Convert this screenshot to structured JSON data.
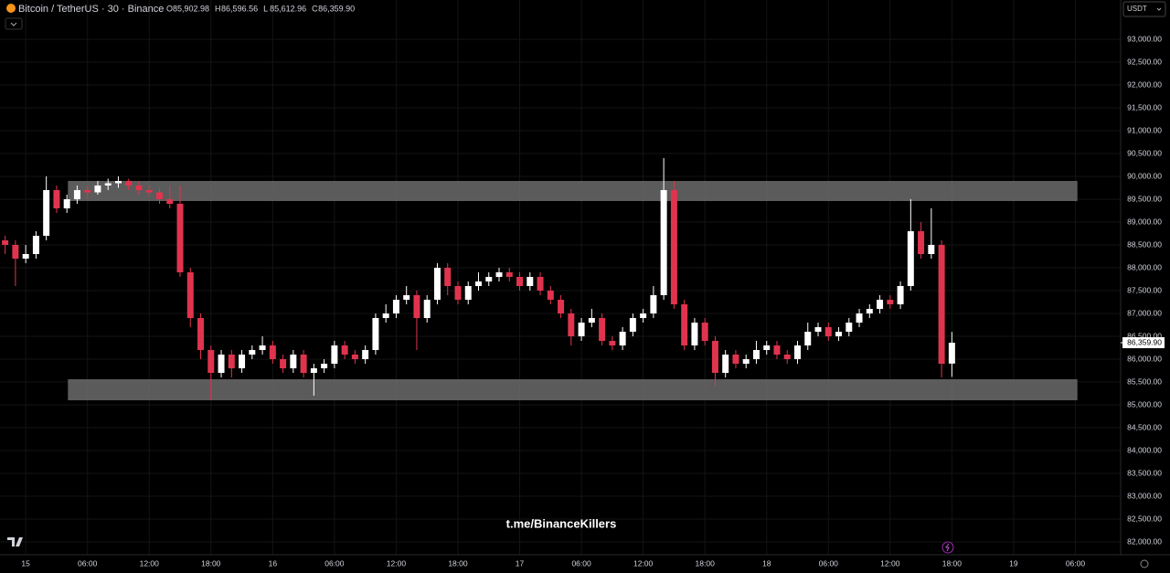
{
  "chart_data": {
    "type": "candlestick",
    "title": "Bitcoin / TetherUS · 30 · Binance",
    "ohlc": [
      {
        "label": "O",
        "value": "85,902.98"
      },
      {
        "label": "H",
        "value": "86,596.56"
      },
      {
        "label": "L",
        "value": "85,612.96"
      },
      {
        "label": "C",
        "value": "86,359.90"
      }
    ],
    "currency": "USDT",
    "watermark": "t.me/BinanceKillers",
    "colors": {
      "up": "#ffffff",
      "down": "#e0344e",
      "zone": "#6b6b6b",
      "background": "#000000"
    },
    "x": [
      -2,
      -1,
      0,
      1,
      2,
      3,
      4,
      5,
      6,
      7,
      8,
      9,
      10,
      11,
      12,
      13,
      14,
      15,
      16,
      17,
      18,
      19,
      20,
      21,
      22,
      23,
      24,
      25,
      26,
      27,
      28,
      29,
      30,
      31,
      32,
      33,
      34,
      35,
      36,
      37,
      38,
      39,
      40,
      41,
      42,
      43,
      44,
      45,
      46,
      47,
      48,
      49,
      50,
      51,
      52,
      53,
      54,
      55,
      56,
      57,
      58,
      59,
      60,
      61,
      62,
      63,
      64,
      65,
      66,
      67,
      68,
      69,
      70,
      71,
      72,
      73,
      74,
      75,
      76,
      77,
      78,
      79,
      80,
      81,
      82,
      83,
      84,
      85,
      86,
      87,
      88,
      89,
      90
    ],
    "candles": [
      [
        88600,
        88700,
        88300,
        88500
      ],
      [
        88500,
        88600,
        87600,
        88200
      ],
      [
        88200,
        88500,
        88100,
        88300
      ],
      [
        88300,
        88800,
        88200,
        88700
      ],
      [
        88700,
        90000,
        88600,
        89700
      ],
      [
        89700,
        89800,
        89200,
        89300
      ],
      [
        89300,
        89600,
        89200,
        89500
      ],
      [
        89500,
        89800,
        89400,
        89700
      ],
      [
        89700,
        89800,
        89500,
        89650
      ],
      [
        89650,
        89900,
        89600,
        89800
      ],
      [
        89800,
        89950,
        89700,
        89850
      ],
      [
        89850,
        90000,
        89750,
        89900
      ],
      [
        89900,
        89950,
        89700,
        89800
      ],
      [
        89800,
        89900,
        89600,
        89700
      ],
      [
        89700,
        89800,
        89550,
        89650
      ],
      [
        89650,
        89750,
        89400,
        89500
      ],
      [
        89500,
        89800,
        89300,
        89400
      ],
      [
        89400,
        89800,
        87800,
        87900
      ],
      [
        87900,
        88000,
        86700,
        86900
      ],
      [
        86900,
        87000,
        86000,
        86200
      ],
      [
        86200,
        86300,
        85100,
        85700
      ],
      [
        85700,
        86200,
        85600,
        86100
      ],
      [
        86100,
        86200,
        85600,
        85800
      ],
      [
        85800,
        86200,
        85700,
        86100
      ],
      [
        86100,
        86300,
        86000,
        86200
      ],
      [
        86200,
        86500,
        86100,
        86300
      ],
      [
        86300,
        86400,
        85900,
        86000
      ],
      [
        86000,
        86100,
        85700,
        85800
      ],
      [
        85800,
        86200,
        85700,
        86100
      ],
      [
        86100,
        86200,
        85600,
        85700
      ],
      [
        85700,
        85900,
        85200,
        85800
      ],
      [
        85800,
        86000,
        85700,
        85900
      ],
      [
        85900,
        86400,
        85800,
        86300
      ],
      [
        86300,
        86400,
        86000,
        86100
      ],
      [
        86100,
        86200,
        85900,
        86000
      ],
      [
        86000,
        86300,
        85900,
        86200
      ],
      [
        86200,
        87000,
        86100,
        86900
      ],
      [
        86900,
        87200,
        86800,
        87000
      ],
      [
        87000,
        87400,
        86900,
        87300
      ],
      [
        87300,
        87600,
        87200,
        87400
      ],
      [
        87400,
        87500,
        86200,
        86900
      ],
      [
        86900,
        87400,
        86800,
        87300
      ],
      [
        87300,
        88100,
        87200,
        88000
      ],
      [
        88000,
        88100,
        87400,
        87600
      ],
      [
        87600,
        87700,
        87200,
        87300
      ],
      [
        87300,
        87700,
        87200,
        87600
      ],
      [
        87600,
        87900,
        87500,
        87700
      ],
      [
        87700,
        87900,
        87600,
        87800
      ],
      [
        87800,
        88000,
        87700,
        87900
      ],
      [
        87900,
        88000,
        87700,
        87800
      ],
      [
        87800,
        87900,
        87500,
        87600
      ],
      [
        87600,
        87900,
        87500,
        87800
      ],
      [
        87800,
        87900,
        87400,
        87500
      ],
      [
        87500,
        87600,
        87200,
        87300
      ],
      [
        87300,
        87400,
        86900,
        87000
      ],
      [
        87000,
        87100,
        86300,
        86500
      ],
      [
        86500,
        86900,
        86400,
        86800
      ],
      [
        86800,
        87100,
        86700,
        86900
      ],
      [
        86900,
        87000,
        86300,
        86400
      ],
      [
        86400,
        86500,
        86200,
        86300
      ],
      [
        86300,
        86700,
        86200,
        86600
      ],
      [
        86600,
        87000,
        86500,
        86900
      ],
      [
        86900,
        87100,
        86800,
        87000
      ],
      [
        87000,
        87600,
        86900,
        87400
      ],
      [
        87400,
        90400,
        87300,
        89700
      ],
      [
        89700,
        89900,
        87100,
        87200
      ],
      [
        87200,
        87300,
        86200,
        86300
      ],
      [
        86300,
        86900,
        86200,
        86800
      ],
      [
        86800,
        86900,
        86300,
        86400
      ],
      [
        86400,
        86500,
        85400,
        85700
      ],
      [
        85700,
        86200,
        85600,
        86100
      ],
      [
        86100,
        86200,
        85800,
        85900
      ],
      [
        85900,
        86100,
        85800,
        86000
      ],
      [
        86000,
        86400,
        85900,
        86200
      ],
      [
        86200,
        86400,
        86100,
        86300
      ],
      [
        86300,
        86400,
        86000,
        86100
      ],
      [
        86100,
        86200,
        85900,
        86000
      ],
      [
        86000,
        86400,
        85900,
        86300
      ],
      [
        86300,
        86800,
        86200,
        86600
      ],
      [
        86600,
        86800,
        86500,
        86700
      ],
      [
        86700,
        86800,
        86400,
        86500
      ],
      [
        86500,
        86700,
        86400,
        86600
      ],
      [
        86600,
        86900,
        86500,
        86800
      ],
      [
        86800,
        87100,
        86700,
        87000
      ],
      [
        87000,
        87200,
        86900,
        87100
      ],
      [
        87100,
        87400,
        87000,
        87300
      ],
      [
        87300,
        87400,
        87100,
        87200
      ],
      [
        87200,
        87700,
        87100,
        87600
      ],
      [
        87600,
        89500,
        87500,
        88800
      ],
      [
        88800,
        89000,
        88200,
        88300
      ],
      [
        88300,
        89300,
        88200,
        88500
      ],
      [
        88500,
        88600,
        85600,
        85900
      ],
      [
        85902.98,
        86596.56,
        85612.96,
        86359.9
      ]
    ],
    "zones": [
      {
        "x_from": 4.1,
        "x_to": 102.2,
        "from": 89460,
        "to": 89900
      },
      {
        "x_from": 4.1,
        "x_to": 102.2,
        "from": 85100,
        "to": 85560
      }
    ],
    "price_label": {
      "value": 86359.9,
      "label": "86,359.90"
    },
    "xlim": [
      -2.5,
      106.4
    ],
    "ylim": [
      81720,
      93860
    ],
    "xticks": [
      {
        "value": 0,
        "label": "15"
      },
      {
        "value": 6,
        "label": "06:00"
      },
      {
        "value": 12,
        "label": "12:00"
      },
      {
        "value": 18,
        "label": "18:00"
      },
      {
        "value": 24,
        "label": "16"
      },
      {
        "value": 30,
        "label": "06:00"
      },
      {
        "value": 36,
        "label": "12:00"
      },
      {
        "value": 42,
        "label": "18:00"
      },
      {
        "value": 48,
        "label": "17"
      },
      {
        "value": 54,
        "label": "06:00"
      },
      {
        "value": 60,
        "label": "12:00"
      },
      {
        "value": 66,
        "label": "18:00"
      },
      {
        "value": 72,
        "label": "18"
      },
      {
        "value": 78,
        "label": "06:00"
      },
      {
        "value": 84,
        "label": "12:00"
      },
      {
        "value": 90,
        "label": "18:00"
      },
      {
        "value": 96,
        "label": "19"
      },
      {
        "value": 102,
        "label": "06:00"
      }
    ],
    "yticks": [
      {
        "value": 82000,
        "label": "82,000.00"
      },
      {
        "value": 82500,
        "label": "82,500.00"
      },
      {
        "value": 83000,
        "label": "83,000.00"
      },
      {
        "value": 83500,
        "label": "83,500.00"
      },
      {
        "value": 84000,
        "label": "84,000.00"
      },
      {
        "value": 84500,
        "label": "84,500.00"
      },
      {
        "value": 85000,
        "label": "85,000.00"
      },
      {
        "value": 85500,
        "label": "85,500.00"
      },
      {
        "value": 86000,
        "label": "86,000.00"
      },
      {
        "value": 86500,
        "label": "86,500.00"
      },
      {
        "value": 87000,
        "label": "87,000.00"
      },
      {
        "value": 87500,
        "label": "87,500.00"
      },
      {
        "value": 88000,
        "label": "88,000.00"
      },
      {
        "value": 88500,
        "label": "88,500.00"
      },
      {
        "value": 89000,
        "label": "89,000.00"
      },
      {
        "value": 89500,
        "label": "89,500.00"
      },
      {
        "value": 90000,
        "label": "90,000.00"
      },
      {
        "value": 90500,
        "label": "90,500.00"
      },
      {
        "value": 91000,
        "label": "91,000.00"
      },
      {
        "value": 91500,
        "label": "91,500.00"
      },
      {
        "value": 92000,
        "label": "92,000.00"
      },
      {
        "value": 92500,
        "label": "92,500.00"
      },
      {
        "value": 93000,
        "label": "93,000.00"
      }
    ],
    "grid": true
  }
}
